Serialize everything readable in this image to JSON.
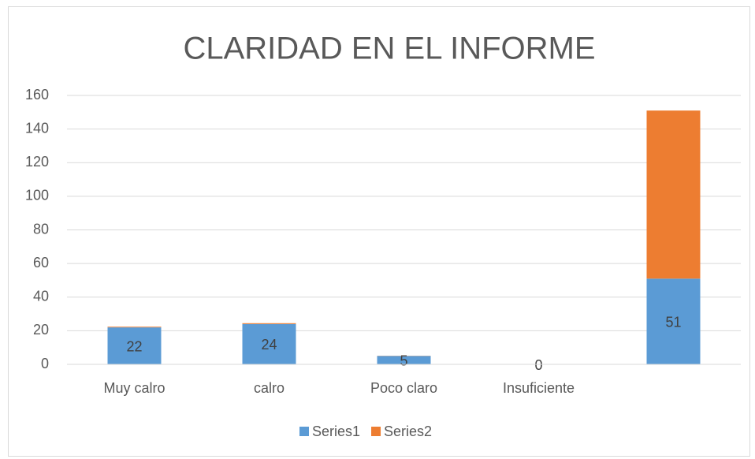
{
  "chart_data": {
    "type": "bar",
    "stacked": true,
    "title": "CLARIDAD EN EL INFORME",
    "categories": [
      "Muy calro",
      "calro",
      "Poco claro",
      "Insuficiente",
      null
    ],
    "series": [
      {
        "name": "Series1",
        "color": "#5b9bd5",
        "values": [
          22,
          24,
          5,
          0,
          51
        ],
        "data_labels": true
      },
      {
        "name": "Series2",
        "color": "#ed7d31",
        "values": [
          0.4,
          0.5,
          0.1,
          0,
          100
        ]
      }
    ],
    "ylim": [
      0,
      160
    ],
    "yticks": [
      0,
      20,
      40,
      60,
      80,
      100,
      120,
      140,
      160
    ],
    "grid": true,
    "legend": "bottom"
  }
}
